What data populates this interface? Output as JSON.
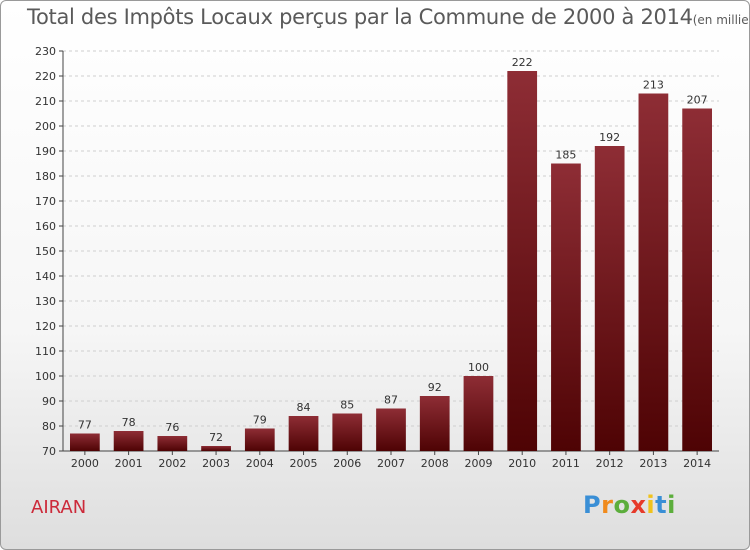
{
  "chart_data": {
    "type": "bar",
    "title": "Total des Impôts Locaux perçus par la Commune de 2000 à 2014",
    "unit": "(en milliers d'€)",
    "categories": [
      "2000",
      "2001",
      "2002",
      "2003",
      "2004",
      "2005",
      "2006",
      "2007",
      "2008",
      "2009",
      "2010",
      "2011",
      "2012",
      "2013",
      "2014"
    ],
    "values": [
      77,
      78,
      76,
      72,
      79,
      84,
      85,
      87,
      92,
      100,
      222,
      185,
      192,
      213,
      207
    ],
    "ylim": [
      70,
      230
    ],
    "yticks": [
      70,
      80,
      90,
      100,
      110,
      120,
      130,
      140,
      150,
      160,
      170,
      180,
      190,
      200,
      210,
      220,
      230
    ],
    "xlabel": "",
    "ylabel": "",
    "grid": true,
    "bar_color": "#7a1a1f"
  },
  "commune": "AIRAN",
  "brand": {
    "letters": [
      "P",
      "r",
      "o",
      "x",
      "i",
      "t",
      "i"
    ],
    "colors": [
      "#3a8fd6",
      "#f08a1c",
      "#5cae3c",
      "#e63a2a",
      "#f0c21c",
      "#3a8fd6",
      "#5cae3c"
    ]
  }
}
